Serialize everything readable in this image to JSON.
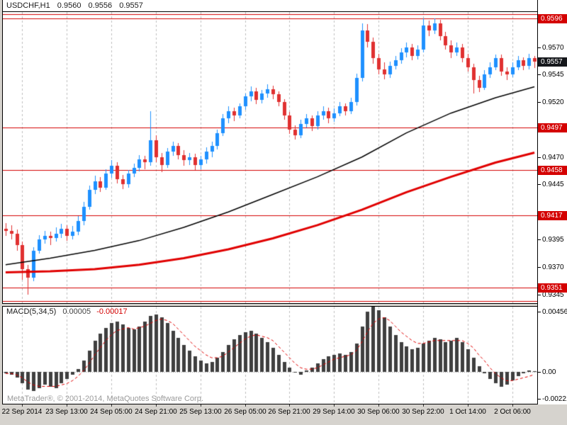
{
  "app": {
    "quote_line": {
      "symbol": "USDCHF,H1",
      "values": [
        "0.9560",
        "0.9556",
        "0.9557"
      ]
    },
    "watermark": "MetaTrader®, © 2001-2014, MetaQuotes Software Corp."
  },
  "colors": {
    "background": "#ffffff",
    "frame": "#d6d3ce",
    "grid": "#bdbdbd",
    "bull": "#1e90ff",
    "bear": "#e03030",
    "level": "#d40000",
    "ma_fast": "#000000",
    "ma_slow": "#e00000",
    "macd_histogram": "#3f3f3f",
    "macd_signal": "#e00000",
    "current_label_bg": "#15171b",
    "level_label_bg": "#d40000"
  },
  "chart_data": {
    "type": "candlestick",
    "symbol": "USDCHF",
    "timeframe": "H1",
    "legend_position": "none",
    "grid": "vertical-dashed",
    "x_labels": [
      "22 Sep 2014",
      "23 Sep 13:00",
      "24 Sep 05:00",
      "24 Sep 21:00",
      "25 Sep 13:00",
      "26 Sep 05:00",
      "26 Sep 21:00",
      "29 Sep 14:00",
      "30 Sep 06:00",
      "30 Sep 22:00",
      "1 Oct 14:00",
      "2 Oct 06:00"
    ],
    "x_label_indices": [
      3,
      11,
      19,
      27,
      35,
      43,
      51,
      59,
      67,
      75,
      83,
      91
    ],
    "price_pane": {
      "price_min": 0.9337,
      "price_max": 0.9602,
      "axis_ticks": [
        "0.9570",
        "0.9545",
        "0.9520",
        "0.9470",
        "0.9445",
        "0.9395",
        "0.9370",
        "0.9345"
      ],
      "current_price": "0.9557",
      "levels": [
        {
          "price": 0.96,
          "labeled": false
        },
        {
          "price": 0.9596,
          "labeled": true
        },
        {
          "price": 0.9497,
          "labeled": true
        },
        {
          "price": 0.9458,
          "labeled": true
        },
        {
          "price": 0.9417,
          "labeled": true
        },
        {
          "price": 0.9351,
          "labeled": true
        },
        {
          "price": 0.9339,
          "labeled": false
        }
      ],
      "candles": [
        [
          0.9405,
          0.941,
          0.9398,
          0.9403
        ],
        [
          0.9403,
          0.9408,
          0.9395,
          0.94
        ],
        [
          0.94,
          0.9404,
          0.9385,
          0.939
        ],
        [
          0.939,
          0.9393,
          0.9358,
          0.9368
        ],
        [
          0.9368,
          0.9372,
          0.9345,
          0.936
        ],
        [
          0.936,
          0.9388,
          0.9357,
          0.9385
        ],
        [
          0.9385,
          0.9399,
          0.9382,
          0.9395
        ],
        [
          0.9395,
          0.9403,
          0.9391,
          0.9398
        ],
        [
          0.9398,
          0.9402,
          0.939,
          0.9396
        ],
        [
          0.9396,
          0.9406,
          0.9393,
          0.94
        ],
        [
          0.94,
          0.9409,
          0.9396,
          0.9405
        ],
        [
          0.9405,
          0.9408,
          0.9394,
          0.9398
        ],
        [
          0.9398,
          0.9407,
          0.9395,
          0.9402
        ],
        [
          0.9402,
          0.9416,
          0.9399,
          0.9412
        ],
        [
          0.9412,
          0.9429,
          0.9408,
          0.9425
        ],
        [
          0.9425,
          0.9444,
          0.9422,
          0.944
        ],
        [
          0.944,
          0.9453,
          0.9436,
          0.9448
        ],
        [
          0.9448,
          0.9452,
          0.9438,
          0.9442
        ],
        [
          0.9442,
          0.9459,
          0.944,
          0.9455
        ],
        [
          0.9455,
          0.9467,
          0.9451,
          0.9462
        ],
        [
          0.9462,
          0.9465,
          0.9446,
          0.945
        ],
        [
          0.945,
          0.9454,
          0.9441,
          0.9445
        ],
        [
          0.9445,
          0.9458,
          0.9442,
          0.9455
        ],
        [
          0.9455,
          0.9464,
          0.9452,
          0.946
        ],
        [
          0.946,
          0.9472,
          0.9457,
          0.9468
        ],
        [
          0.9468,
          0.9471,
          0.9459,
          0.9465
        ],
        [
          0.9465,
          0.9512,
          0.9462,
          0.9485
        ],
        [
          0.9485,
          0.949,
          0.9465,
          0.947
        ],
        [
          0.947,
          0.9474,
          0.9456,
          0.9463
        ],
        [
          0.9463,
          0.9478,
          0.946,
          0.9475
        ],
        [
          0.9475,
          0.9484,
          0.9471,
          0.948
        ],
        [
          0.948,
          0.9483,
          0.9468,
          0.9472
        ],
        [
          0.9472,
          0.9476,
          0.9462,
          0.9467
        ],
        [
          0.9467,
          0.9474,
          0.9463,
          0.947
        ],
        [
          0.947,
          0.9473,
          0.9458,
          0.9463
        ],
        [
          0.9463,
          0.9471,
          0.9459,
          0.9468
        ],
        [
          0.9468,
          0.9479,
          0.9464,
          0.9475
        ],
        [
          0.9475,
          0.9484,
          0.947,
          0.948
        ],
        [
          0.948,
          0.9495,
          0.9477,
          0.9492
        ],
        [
          0.9492,
          0.9509,
          0.9489,
          0.9505
        ],
        [
          0.9505,
          0.9516,
          0.9501,
          0.9512
        ],
        [
          0.9512,
          0.9515,
          0.9503,
          0.9508
        ],
        [
          0.9508,
          0.9519,
          0.9505,
          0.9516
        ],
        [
          0.9516,
          0.9528,
          0.9513,
          0.9525
        ],
        [
          0.9525,
          0.9534,
          0.9521,
          0.953
        ],
        [
          0.953,
          0.9533,
          0.9518,
          0.9522
        ],
        [
          0.9522,
          0.9531,
          0.9519,
          0.9528
        ],
        [
          0.9528,
          0.9536,
          0.9524,
          0.9532
        ],
        [
          0.9532,
          0.9535,
          0.9523,
          0.9527
        ],
        [
          0.9527,
          0.953,
          0.9516,
          0.952
        ],
        [
          0.952,
          0.9523,
          0.9504,
          0.9508
        ],
        [
          0.9508,
          0.9511,
          0.9491,
          0.9495
        ],
        [
          0.9495,
          0.9499,
          0.9486,
          0.949
        ],
        [
          0.949,
          0.9504,
          0.9487,
          0.95
        ],
        [
          0.95,
          0.9509,
          0.9497,
          0.9505
        ],
        [
          0.9505,
          0.9508,
          0.9494,
          0.9498
        ],
        [
          0.9498,
          0.9512,
          0.9495,
          0.9508
        ],
        [
          0.9508,
          0.9516,
          0.9504,
          0.9512
        ],
        [
          0.9512,
          0.9515,
          0.9501,
          0.9505
        ],
        [
          0.9505,
          0.9514,
          0.9502,
          0.951
        ],
        [
          0.951,
          0.952,
          0.9507,
          0.9516
        ],
        [
          0.9516,
          0.9519,
          0.9508,
          0.9512
        ],
        [
          0.9512,
          0.9524,
          0.9509,
          0.952
        ],
        [
          0.952,
          0.9546,
          0.9517,
          0.9542
        ],
        [
          0.9542,
          0.9592,
          0.9539,
          0.9585
        ],
        [
          0.9585,
          0.9591,
          0.957,
          0.9575
        ],
        [
          0.9575,
          0.9579,
          0.9555,
          0.956
        ],
        [
          0.956,
          0.9564,
          0.9545,
          0.955
        ],
        [
          0.955,
          0.9556,
          0.9541,
          0.9545
        ],
        [
          0.9545,
          0.9557,
          0.9542,
          0.9553
        ],
        [
          0.9553,
          0.9562,
          0.955,
          0.9558
        ],
        [
          0.9558,
          0.9569,
          0.9555,
          0.9565
        ],
        [
          0.9565,
          0.9574,
          0.9561,
          0.957
        ],
        [
          0.957,
          0.9573,
          0.9558,
          0.9562
        ],
        [
          0.9562,
          0.9572,
          0.9559,
          0.9568
        ],
        [
          0.9568,
          0.9596,
          0.9565,
          0.959
        ],
        [
          0.959,
          0.9594,
          0.958,
          0.9585
        ],
        [
          0.9585,
          0.9596,
          0.9582,
          0.9592
        ],
        [
          0.9592,
          0.9595,
          0.9576,
          0.958
        ],
        [
          0.958,
          0.9584,
          0.9568,
          0.9572
        ],
        [
          0.9572,
          0.9576,
          0.956,
          0.9565
        ],
        [
          0.9565,
          0.9574,
          0.9562,
          0.957
        ],
        [
          0.957,
          0.9573,
          0.9556,
          0.956
        ],
        [
          0.956,
          0.9564,
          0.9548,
          0.9552
        ],
        [
          0.9552,
          0.9555,
          0.9528,
          0.954
        ],
        [
          0.954,
          0.9544,
          0.9529,
          0.9533
        ],
        [
          0.9533,
          0.9549,
          0.9531,
          0.9545
        ],
        [
          0.9545,
          0.9556,
          0.9542,
          0.9552
        ],
        [
          0.9552,
          0.9563,
          0.9549,
          0.956
        ],
        [
          0.956,
          0.9563,
          0.9544,
          0.9548
        ],
        [
          0.9548,
          0.9552,
          0.954,
          0.9545
        ],
        [
          0.9545,
          0.9556,
          0.9543,
          0.9552
        ],
        [
          0.9552,
          0.9562,
          0.9549,
          0.9558
        ],
        [
          0.9558,
          0.9561,
          0.9549,
          0.9553
        ],
        [
          0.9553,
          0.9564,
          0.955,
          0.956
        ],
        [
          0.956,
          0.9562,
          0.9551,
          0.9557
        ]
      ],
      "ma_black": [
        [
          0,
          0.9372
        ],
        [
          8,
          0.9378
        ],
        [
          16,
          0.9385
        ],
        [
          24,
          0.9394
        ],
        [
          32,
          0.9406
        ],
        [
          40,
          0.942
        ],
        [
          48,
          0.9436
        ],
        [
          56,
          0.9452
        ],
        [
          64,
          0.947
        ],
        [
          72,
          0.9492
        ],
        [
          80,
          0.951
        ],
        [
          88,
          0.9524
        ],
        [
          95,
          0.9534
        ]
      ],
      "ma_red": [
        [
          0,
          0.9365
        ],
        [
          8,
          0.9366
        ],
        [
          16,
          0.9368
        ],
        [
          24,
          0.9372
        ],
        [
          32,
          0.9378
        ],
        [
          40,
          0.9386
        ],
        [
          48,
          0.9396
        ],
        [
          56,
          0.9408
        ],
        [
          64,
          0.9422
        ],
        [
          72,
          0.9438
        ],
        [
          80,
          0.9452
        ],
        [
          88,
          0.9465
        ],
        [
          95,
          0.9474
        ]
      ]
    },
    "macd_pane": {
      "label": "MACD(5,34,5)",
      "values": [
        "0.00005",
        "-0.00017"
      ],
      "min": -0.00221,
      "max": 0.00456,
      "axis_labels": [
        "0.00456",
        "0.00",
        "-0.00221"
      ],
      "histogram": [
        -0.0001,
        -0.0002,
        -0.0004,
        -0.0008,
        -0.0012,
        -0.0013,
        -0.0011,
        -0.0009,
        -0.001,
        -0.0011,
        -0.0008,
        -0.0005,
        -0.0002,
        0.0002,
        0.0008,
        0.0015,
        0.0022,
        0.0027,
        0.0031,
        0.0034,
        0.0035,
        0.0033,
        0.0031,
        0.003,
        0.0032,
        0.0035,
        0.0039,
        0.004,
        0.0038,
        0.0034,
        0.0029,
        0.0024,
        0.0019,
        0.0015,
        0.0011,
        0.0008,
        0.0006,
        0.0007,
        0.001,
        0.0014,
        0.0019,
        0.0023,
        0.0026,
        0.0028,
        0.0029,
        0.0027,
        0.0024,
        0.0021,
        0.0017,
        0.0012,
        0.0007,
        0.0003,
        0,
        -0.0002,
        0.0001,
        0.0003,
        0.0006,
        0.0009,
        0.0011,
        0.0012,
        0.0013,
        0.0012,
        0.0014,
        0.002,
        0.0032,
        0.0042,
        0.0046,
        0.0043,
        0.0038,
        0.0032,
        0.0026,
        0.0021,
        0.0018,
        0.0016,
        0.0017,
        0.002,
        0.0022,
        0.0024,
        0.0023,
        0.0021,
        0.0022,
        0.0024,
        0.0021,
        0.0016,
        0.001,
        0.0004,
        -0.0001,
        -0.0005,
        -0.0008,
        -0.001,
        -0.0009,
        -0.0006,
        -0.0003,
        -0.0001,
        0.0001,
        5e-05
      ],
      "signal": [
        -0.0001,
        -0.0001,
        -0.0002,
        -0.0004,
        -0.0007,
        -0.0009,
        -0.001,
        -0.001,
        -0.001,
        -0.001,
        -0.0009,
        -0.0008,
        -0.0006,
        -0.0003,
        0.0001,
        0.0006,
        0.0012,
        0.0017,
        0.0022,
        0.0026,
        0.0029,
        0.003,
        0.0031,
        0.003,
        0.0031,
        0.0032,
        0.0034,
        0.0036,
        0.0037,
        0.0036,
        0.0034,
        0.003,
        0.0026,
        0.0022,
        0.0018,
        0.0015,
        0.0012,
        0.001,
        0.001,
        0.0011,
        0.0014,
        0.0017,
        0.002,
        0.0023,
        0.0025,
        0.0026,
        0.0025,
        0.0024,
        0.0022,
        0.0018,
        0.0014,
        0.001,
        0.0006,
        0.0003,
        0.0002,
        0.0002,
        0.0003,
        0.0005,
        0.0007,
        0.0009,
        0.001,
        0.0011,
        0.0012,
        0.0015,
        0.0021,
        0.0028,
        0.0034,
        0.0037,
        0.0038,
        0.0036,
        0.0032,
        0.0028,
        0.0025,
        0.0022,
        0.002,
        0.002,
        0.0021,
        0.0022,
        0.0022,
        0.0022,
        0.0022,
        0.0022,
        0.0022,
        0.002,
        0.0017,
        0.0012,
        0.0008,
        0.0003,
        -0.0001,
        -0.0004,
        -0.0006,
        -0.0006,
        -0.0005,
        -0.0004,
        -0.0003,
        -0.00017
      ]
    }
  }
}
